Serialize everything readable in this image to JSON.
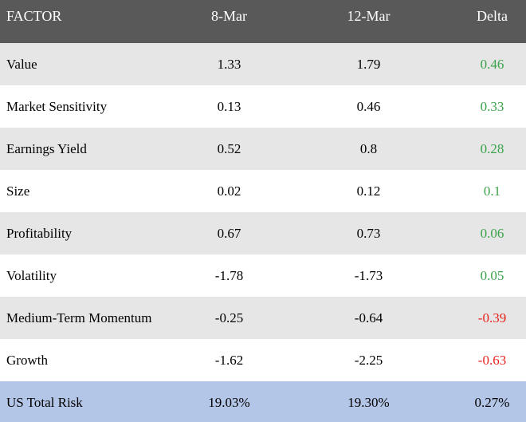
{
  "headers": {
    "factor": "FACTOR",
    "date1": "8-Mar",
    "date2": "12-Mar",
    "delta": "Delta"
  },
  "rows": [
    {
      "factor": "Value",
      "v1": "1.33",
      "v2": "1.79",
      "delta": "0.46",
      "sign": "pos"
    },
    {
      "factor": "Market Sensitivity",
      "v1": "0.13",
      "v2": "0.46",
      "delta": "0.33",
      "sign": "pos"
    },
    {
      "factor": "Earnings Yield",
      "v1": "0.52",
      "v2": "0.8",
      "delta": "0.28",
      "sign": "pos"
    },
    {
      "factor": "Size",
      "v1": "0.02",
      "v2": "0.12",
      "delta": "0.1",
      "sign": "pos"
    },
    {
      "factor": "Profitability",
      "v1": "0.67",
      "v2": "0.73",
      "delta": "0.06",
      "sign": "pos"
    },
    {
      "factor": "Volatility",
      "v1": "-1.78",
      "v2": "-1.73",
      "delta": "0.05",
      "sign": "pos"
    },
    {
      "factor": "Medium-Term Momentum",
      "v1": "-0.25",
      "v2": "-0.64",
      "delta": "-0.39",
      "sign": "neg"
    },
    {
      "factor": "Growth",
      "v1": "-1.62",
      "v2": "-2.25",
      "delta": "-0.63",
      "sign": "neg"
    }
  ],
  "total": {
    "factor": "US Total Risk",
    "v1": "19.03%",
    "v2": "19.30%",
    "delta": "0.27%"
  },
  "colors": {
    "header_bg": "#595959",
    "row_shade": "#e6e6e6",
    "total_bg": "#b4c6e7",
    "positive": "#3aa34a",
    "negative": "#e8231e"
  }
}
